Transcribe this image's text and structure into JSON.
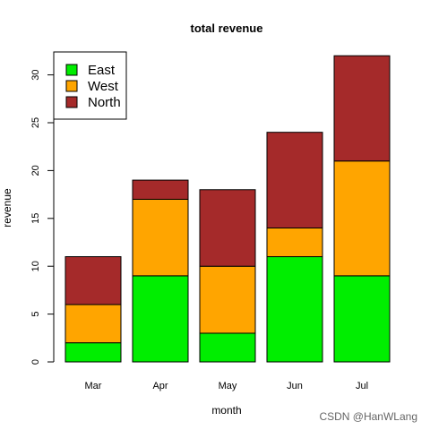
{
  "chart_data": {
    "type": "bar",
    "stacked": true,
    "title": "total revenue",
    "xlabel": "month",
    "ylabel": "revenue",
    "categories": [
      "Mar",
      "Apr",
      "May",
      "Jun",
      "Jul"
    ],
    "series": [
      {
        "name": "East",
        "color": "#00ee00",
        "values": [
          2,
          9,
          3,
          11,
          9
        ]
      },
      {
        "name": "West",
        "color": "#ffa500",
        "values": [
          4,
          8,
          7,
          3,
          12
        ]
      },
      {
        "name": "North",
        "color": "#a52a2a",
        "values": [
          5,
          2,
          8,
          10,
          11
        ]
      }
    ],
    "ylim": [
      0,
      32
    ],
    "yticks": [
      0,
      5,
      10,
      15,
      20,
      25,
      30
    ],
    "legend": {
      "position": "top-left"
    },
    "grid": false
  },
  "watermark": "CSDN @HanWLang"
}
